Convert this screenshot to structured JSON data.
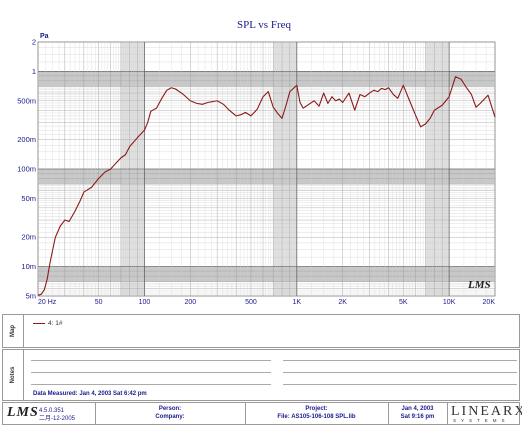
{
  "chart_data": {
    "type": "line",
    "title": "SPL vs Freq",
    "ylabel": "Pa",
    "xlim": [
      20,
      20000
    ],
    "ylim": [
      0.005,
      2
    ],
    "x_scale": "log",
    "y_scale": "log",
    "grid": true,
    "y_ticks": [
      {
        "v": 2,
        "label": "2"
      },
      {
        "v": 1,
        "label": "1"
      },
      {
        "v": 0.5,
        "label": "500m"
      },
      {
        "v": 0.2,
        "label": "200m"
      },
      {
        "v": 0.1,
        "label": "100m"
      },
      {
        "v": 0.05,
        "label": "50m"
      },
      {
        "v": 0.02,
        "label": "20m"
      },
      {
        "v": 0.01,
        "label": "10m"
      },
      {
        "v": 0.005,
        "label": "5m"
      }
    ],
    "x_ticks": [
      {
        "v": 20,
        "label": "20 Hz"
      },
      {
        "v": 50,
        "label": "50"
      },
      {
        "v": 100,
        "label": "100"
      },
      {
        "v": 200,
        "label": "200"
      },
      {
        "v": 500,
        "label": "500"
      },
      {
        "v": 1000,
        "label": "1K"
      },
      {
        "v": 2000,
        "label": "2K"
      },
      {
        "v": 5000,
        "label": "5K"
      },
      {
        "v": 10000,
        "label": "10K"
      },
      {
        "v": 20000,
        "label": "20K"
      }
    ],
    "series": [
      {
        "name": "4: 1#",
        "color": "#8b1a1a",
        "x": [
          20,
          21,
          22,
          23,
          24,
          25,
          26,
          28,
          30,
          32,
          35,
          38,
          40,
          45,
          50,
          55,
          60,
          65,
          70,
          75,
          80,
          90,
          100,
          105,
          110,
          120,
          130,
          140,
          150,
          160,
          180,
          200,
          220,
          240,
          260,
          280,
          300,
          330,
          360,
          400,
          430,
          460,
          500,
          550,
          600,
          650,
          700,
          750,
          800,
          850,
          900,
          1000,
          1050,
          1100,
          1200,
          1300,
          1400,
          1500,
          1600,
          1700,
          1800,
          1900,
          2000,
          2200,
          2400,
          2600,
          2800,
          3000,
          3200,
          3400,
          3600,
          3800,
          4000,
          4300,
          4600,
          5000,
          5500,
          6000,
          6500,
          7000,
          7500,
          8000,
          9000,
          10000,
          11000,
          12000,
          13000,
          14000,
          15000,
          16000,
          18000,
          20000
        ],
        "y": [
          0.0051,
          0.0052,
          0.0058,
          0.0075,
          0.011,
          0.015,
          0.02,
          0.026,
          0.03,
          0.029,
          0.037,
          0.048,
          0.058,
          0.065,
          0.08,
          0.093,
          0.1,
          0.115,
          0.13,
          0.14,
          0.17,
          0.21,
          0.25,
          0.3,
          0.39,
          0.42,
          0.53,
          0.64,
          0.68,
          0.66,
          0.58,
          0.5,
          0.47,
          0.46,
          0.48,
          0.49,
          0.5,
          0.46,
          0.4,
          0.35,
          0.36,
          0.38,
          0.35,
          0.41,
          0.55,
          0.62,
          0.43,
          0.37,
          0.33,
          0.45,
          0.62,
          0.72,
          0.48,
          0.42,
          0.46,
          0.5,
          0.44,
          0.6,
          0.47,
          0.55,
          0.5,
          0.52,
          0.48,
          0.6,
          0.4,
          0.58,
          0.55,
          0.6,
          0.64,
          0.62,
          0.67,
          0.65,
          0.68,
          0.58,
          0.53,
          0.72,
          0.5,
          0.36,
          0.27,
          0.29,
          0.33,
          0.4,
          0.45,
          0.55,
          0.88,
          0.83,
          0.68,
          0.58,
          0.43,
          0.47,
          0.57,
          0.34
        ]
      }
    ]
  },
  "map": {
    "label": "Map",
    "legend": "4: 1#"
  },
  "notes": {
    "label": "Notes",
    "data_measured": "Data Measured: Jan 4, 2003  Sat 6:42 pm"
  },
  "footer": {
    "brand": "LMS",
    "version": "4.5.0.351",
    "version_date": "二月-12-2005",
    "person_label": "Person:",
    "company_label": "Company:",
    "project_label": "Project:",
    "file_label": "File: AS105-106-108 SPL.lib",
    "date": "Jan 4, 2003",
    "time": "Sat 9:16 pm",
    "logo_word": "LINEARX",
    "logo_sub": "SYSTEMS"
  },
  "watermark": "LMS"
}
